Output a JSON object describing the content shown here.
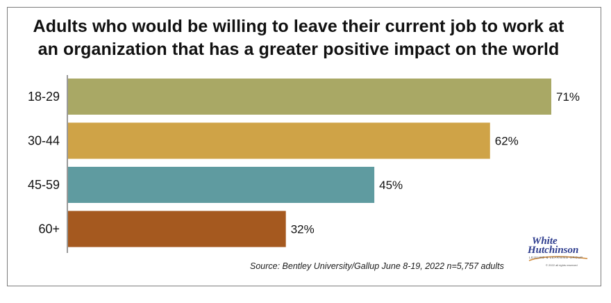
{
  "chart_data": {
    "type": "bar",
    "orientation": "horizontal",
    "title": "Adults who would be willing to leave their current job to work at an organization that has a greater positive impact on the world",
    "title_lines": [
      "Adults who would be willing to leave their current job to work at",
      "an organization that has a greater positive impact on the world"
    ],
    "categories": [
      "18-29",
      "30-44",
      "45-59",
      "60+"
    ],
    "values": [
      71,
      62,
      45,
      32
    ],
    "value_labels": [
      "71%",
      "62%",
      "45%",
      "32%"
    ],
    "colors": [
      "#a9a865",
      "#cfa347",
      "#5f9ba0",
      "#a5591f"
    ],
    "xlim": [
      0,
      71
    ],
    "grid": false,
    "legend": "none",
    "source": "Source: Bentley University/Gallup June 8-19, 2022 n=5,757 adults"
  },
  "logo": {
    "line1": "White",
    "line2": "Hutchinson",
    "tagline": "LEISURE & LEARNING GROUP",
    "copyright": "© 2022 all rights reserved"
  }
}
